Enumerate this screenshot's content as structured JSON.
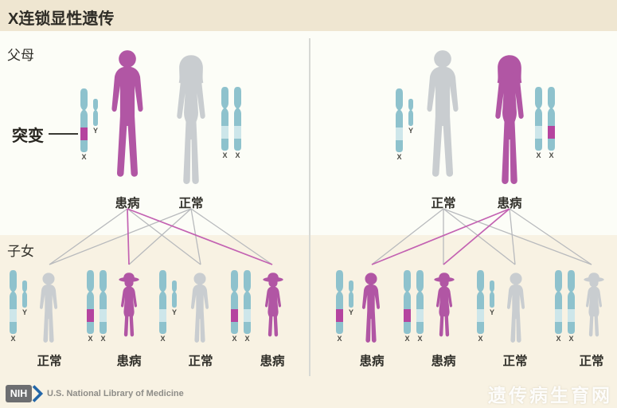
{
  "title": "X连锁显性遗传",
  "section_labels": {
    "parents": "父母",
    "children": "子女"
  },
  "mutation_label": "突变",
  "footer": {
    "logo_text": "NIH",
    "org": "U.S. National Library of Medicine",
    "watermark": "遗传病生育网"
  },
  "colors": {
    "affected": "#b156a4",
    "normal": "#c9cdd0",
    "chromosome": "#8ec2cd",
    "band-pale": "#cde6ea",
    "band-mutant": "#b5449f",
    "line-gray": "#b8babd",
    "line-magenta": "#c362b2",
    "titlebar-bg": "#efe6d1",
    "upper-bg": "#fcfdf7",
    "lower-bg": "#f8f2e3",
    "text-dark": "#2e2c26",
    "nih-gray": "#6d6e71",
    "nih-blue": "#2366a8",
    "footer-text": "#8e8d88"
  },
  "panels": [
    {
      "name": "affected-father-family",
      "parents": [
        {
          "figure": "adult-male",
          "affected": true,
          "status": "患病",
          "chromosomes": [
            {
              "type": "X",
              "band": "mutant",
              "label": "X"
            },
            {
              "type": "Y",
              "band": "none",
              "label": "Y"
            }
          ]
        },
        {
          "figure": "adult-female",
          "affected": false,
          "status": "正常",
          "chromosomes": [
            {
              "type": "X",
              "band": "pale",
              "label": "X"
            },
            {
              "type": "X",
              "band": "pale",
              "label": "X"
            }
          ]
        }
      ],
      "children": [
        {
          "figure": "boy",
          "affected": false,
          "status": "正常",
          "chromosomes": [
            {
              "type": "X",
              "band": "pale",
              "label": "X"
            },
            {
              "type": "Y",
              "band": "none",
              "label": "Y"
            }
          ]
        },
        {
          "figure": "girl",
          "affected": true,
          "status": "患病",
          "chromosomes": [
            {
              "type": "X",
              "band": "mutant",
              "label": "X"
            },
            {
              "type": "X",
              "band": "pale",
              "label": "X"
            }
          ]
        },
        {
          "figure": "boy",
          "affected": false,
          "status": "正常",
          "chromosomes": [
            {
              "type": "X",
              "band": "pale",
              "label": "X"
            },
            {
              "type": "Y",
              "band": "none",
              "label": "Y"
            }
          ]
        },
        {
          "figure": "girl",
          "affected": true,
          "status": "患病",
          "chromosomes": [
            {
              "type": "X",
              "band": "mutant",
              "label": "X"
            },
            {
              "type": "X",
              "band": "pale",
              "label": "X"
            }
          ]
        }
      ]
    },
    {
      "name": "affected-mother-family",
      "parents": [
        {
          "figure": "adult-male",
          "affected": false,
          "status": "正常",
          "chromosomes": [
            {
              "type": "X",
              "band": "pale",
              "label": "X"
            },
            {
              "type": "Y",
              "band": "none",
              "label": "Y"
            }
          ]
        },
        {
          "figure": "adult-female",
          "affected": true,
          "status": "患病",
          "chromosomes": [
            {
              "type": "X",
              "band": "pale",
              "label": "X"
            },
            {
              "type": "X",
              "band": "mutant",
              "label": "X"
            }
          ]
        }
      ],
      "children": [
        {
          "figure": "boy",
          "affected": true,
          "status": "患病",
          "chromosomes": [
            {
              "type": "X",
              "band": "mutant",
              "label": "X"
            },
            {
              "type": "Y",
              "band": "none",
              "label": "Y"
            }
          ]
        },
        {
          "figure": "girl",
          "affected": true,
          "status": "患病",
          "chromosomes": [
            {
              "type": "X",
              "band": "mutant",
              "label": "X"
            },
            {
              "type": "X",
              "band": "pale",
              "label": "X"
            }
          ]
        },
        {
          "figure": "boy",
          "affected": false,
          "status": "正常",
          "chromosomes": [
            {
              "type": "X",
              "band": "pale",
              "label": "X"
            },
            {
              "type": "Y",
              "band": "none",
              "label": "Y"
            }
          ]
        },
        {
          "figure": "girl",
          "affected": false,
          "status": "正常",
          "chromosomes": [
            {
              "type": "X",
              "band": "pale",
              "label": "X"
            },
            {
              "type": "X",
              "band": "pale",
              "label": "X"
            }
          ]
        }
      ]
    }
  ]
}
